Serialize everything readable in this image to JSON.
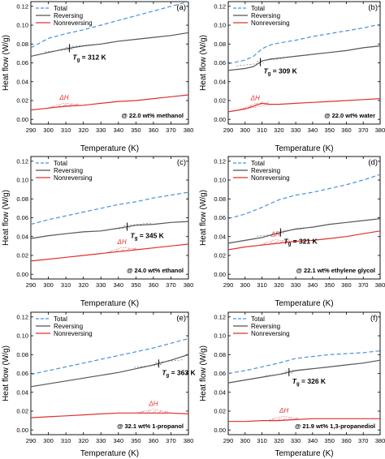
{
  "colors": {
    "total": "#4a90d9",
    "reversing": "#555555",
    "nonreversing": "#e03030",
    "guide": "#666666"
  },
  "axis_labels": {
    "x": "Temperature (K)",
    "y": "Heat flow (W/g)"
  },
  "chart_data": [
    {
      "type": "line",
      "panel": "(a)",
      "condition": "@ 22.0 wt% methanol",
      "tg_label": "T",
      "tg_sub": "g",
      "tg_value": " = 312 K",
      "tg_x": 312,
      "dh_label": "ΔH",
      "xlabel": "Temperature (K)",
      "ylabel": "Heat flow (W/g)",
      "xlim": [
        290,
        380
      ],
      "ylim": [
        -0.005,
        0.125
      ],
      "xticks": [
        290,
        300,
        310,
        320,
        330,
        340,
        350,
        360,
        370,
        380
      ],
      "yticks": [
        0.0,
        0.02,
        0.04,
        0.06,
        0.08,
        0.1,
        0.12
      ],
      "legend": [
        "Total",
        "Reversing",
        "Nonreversing"
      ],
      "series": [
        {
          "name": "Total",
          "x": [
            290,
            300,
            310,
            320,
            330,
            340,
            350,
            360,
            370,
            380
          ],
          "values": [
            0.076,
            0.086,
            0.091,
            0.095,
            0.1,
            0.105,
            0.11,
            0.115,
            0.12,
            0.125
          ]
        },
        {
          "name": "Reversing",
          "x": [
            290,
            300,
            310,
            320,
            330,
            340,
            350,
            360,
            370,
            380
          ],
          "values": [
            0.067,
            0.071,
            0.075,
            0.078,
            0.08,
            0.083,
            0.085,
            0.087,
            0.089,
            0.092
          ]
        },
        {
          "name": "Nonreversing",
          "x": [
            290,
            300,
            310,
            320,
            330,
            340,
            350,
            360,
            370,
            380
          ],
          "values": [
            0.01,
            0.012,
            0.014,
            0.015,
            0.017,
            0.019,
            0.02,
            0.022,
            0.024,
            0.026
          ]
        }
      ]
    },
    {
      "type": "line",
      "panel": "(b)",
      "condition": "@ 22.0 wt% water",
      "tg_label": "T",
      "tg_sub": "g",
      "tg_value": " = 309 K",
      "tg_x": 309,
      "dh_label": "ΔH",
      "xlabel": "Temperature (K)",
      "ylabel": "Heat flow (W/g)",
      "xlim": [
        290,
        380
      ],
      "ylim": [
        -0.005,
        0.125
      ],
      "xticks": [
        290,
        300,
        310,
        320,
        330,
        340,
        350,
        360,
        370,
        380
      ],
      "yticks": [
        0.0,
        0.02,
        0.04,
        0.06,
        0.08,
        0.1,
        0.12
      ],
      "legend": [
        "Total",
        "Reversing",
        "Nonreversing"
      ],
      "series": [
        {
          "name": "Total",
          "x": [
            290,
            300,
            305,
            310,
            315,
            320,
            330,
            340,
            350,
            360,
            370,
            380
          ],
          "values": [
            0.059,
            0.063,
            0.067,
            0.075,
            0.079,
            0.081,
            0.084,
            0.088,
            0.091,
            0.094,
            0.097,
            0.101
          ]
        },
        {
          "name": "Reversing",
          "x": [
            290,
            300,
            305,
            310,
            315,
            320,
            330,
            340,
            350,
            360,
            370,
            380
          ],
          "values": [
            0.052,
            0.054,
            0.056,
            0.062,
            0.064,
            0.065,
            0.067,
            0.069,
            0.071,
            0.073,
            0.076,
            0.078
          ]
        },
        {
          "name": "Nonreversing",
          "x": [
            290,
            300,
            305,
            310,
            315,
            320,
            330,
            340,
            350,
            360,
            370,
            380
          ],
          "values": [
            0.008,
            0.011,
            0.014,
            0.017,
            0.016,
            0.016,
            0.017,
            0.018,
            0.019,
            0.02,
            0.021,
            0.022
          ]
        }
      ]
    },
    {
      "type": "line",
      "panel": "(c)",
      "condition": "@ 24.0 wt% ethanol",
      "tg_label": "T",
      "tg_sub": "g",
      "tg_value": " = 345 K",
      "tg_x": 345,
      "dh_label": "ΔH",
      "xlabel": "Temperature (K)",
      "ylabel": "Heat flow (W/g)",
      "xlim": [
        290,
        380
      ],
      "ylim": [
        -0.005,
        0.125
      ],
      "xticks": [
        290,
        300,
        310,
        320,
        330,
        340,
        350,
        360,
        370,
        380
      ],
      "yticks": [
        0.0,
        0.02,
        0.04,
        0.06,
        0.08,
        0.1,
        0.12
      ],
      "legend": [
        "Total",
        "Reversing",
        "Nonreversing"
      ],
      "series": [
        {
          "name": "Total",
          "x": [
            290,
            300,
            310,
            320,
            330,
            340,
            350,
            360,
            370,
            380
          ],
          "values": [
            0.053,
            0.058,
            0.062,
            0.066,
            0.07,
            0.074,
            0.077,
            0.081,
            0.084,
            0.087
          ]
        },
        {
          "name": "Reversing",
          "x": [
            290,
            300,
            310,
            320,
            330,
            340,
            350,
            360,
            370,
            380
          ],
          "values": [
            0.038,
            0.041,
            0.043,
            0.045,
            0.046,
            0.049,
            0.052,
            0.053,
            0.055,
            0.056
          ]
        },
        {
          "name": "Nonreversing",
          "x": [
            290,
            300,
            310,
            320,
            330,
            340,
            350,
            360,
            370,
            380
          ],
          "values": [
            0.014,
            0.016,
            0.018,
            0.02,
            0.022,
            0.024,
            0.026,
            0.028,
            0.03,
            0.032
          ]
        }
      ]
    },
    {
      "type": "line",
      "panel": "(d)",
      "condition": "@ 22.1 wt% ethylene glycol",
      "tg_label": "T",
      "tg_sub": "g",
      "tg_value": " = 321 K",
      "tg_x": 321,
      "dh_label": "ΔH",
      "xlabel": "Temperature (K)",
      "ylabel": "Heat flow (W/g)",
      "xlim": [
        290,
        380
      ],
      "ylim": [
        -0.005,
        0.125
      ],
      "xticks": [
        290,
        300,
        310,
        320,
        330,
        340,
        350,
        360,
        370,
        380
      ],
      "yticks": [
        0.0,
        0.02,
        0.04,
        0.06,
        0.08,
        0.1,
        0.12
      ],
      "legend": [
        "Total",
        "Reversing",
        "Nonreversing"
      ],
      "series": [
        {
          "name": "Total",
          "x": [
            290,
            300,
            310,
            320,
            330,
            340,
            350,
            360,
            370,
            380
          ],
          "values": [
            0.059,
            0.064,
            0.071,
            0.079,
            0.084,
            0.087,
            0.091,
            0.095,
            0.1,
            0.106
          ]
        },
        {
          "name": "Reversing",
          "x": [
            290,
            300,
            310,
            320,
            330,
            340,
            350,
            360,
            370,
            380
          ],
          "values": [
            0.033,
            0.036,
            0.039,
            0.044,
            0.048,
            0.05,
            0.053,
            0.055,
            0.057,
            0.059
          ]
        },
        {
          "name": "Nonreversing",
          "x": [
            290,
            300,
            310,
            320,
            330,
            340,
            350,
            360,
            370,
            380
          ],
          "values": [
            0.026,
            0.029,
            0.031,
            0.033,
            0.035,
            0.036,
            0.038,
            0.04,
            0.043,
            0.046
          ]
        }
      ]
    },
    {
      "type": "line",
      "panel": "(e)",
      "condition": "@ 32.1 wt% 1-propanol",
      "tg_label": "T",
      "tg_sub": "g",
      "tg_value": " = 363 K",
      "tg_x": 363,
      "dh_label": "ΔH",
      "xlabel": "Temperature (K)",
      "ylabel": "Heat flow (W/g)",
      "xlim": [
        290,
        380
      ],
      "ylim": [
        -0.005,
        0.125
      ],
      "xticks": [
        290,
        300,
        310,
        320,
        330,
        340,
        350,
        360,
        370,
        380
      ],
      "yticks": [
        0.0,
        0.02,
        0.04,
        0.06,
        0.08,
        0.1,
        0.12
      ],
      "legend": [
        "Total",
        "Reversing",
        "Nonreversing"
      ],
      "series": [
        {
          "name": "Total",
          "x": [
            290,
            300,
            310,
            320,
            330,
            340,
            350,
            360,
            370,
            380
          ],
          "values": [
            0.059,
            0.063,
            0.067,
            0.071,
            0.075,
            0.079,
            0.083,
            0.087,
            0.092,
            0.097
          ]
        },
        {
          "name": "Reversing",
          "x": [
            290,
            300,
            310,
            320,
            330,
            340,
            350,
            360,
            370,
            380
          ],
          "values": [
            0.046,
            0.049,
            0.052,
            0.055,
            0.058,
            0.061,
            0.065,
            0.069,
            0.074,
            0.08
          ]
        },
        {
          "name": "Nonreversing",
          "x": [
            290,
            300,
            310,
            320,
            330,
            340,
            350,
            360,
            370,
            380
          ],
          "values": [
            0.013,
            0.014,
            0.015,
            0.016,
            0.017,
            0.018,
            0.018,
            0.018,
            0.018,
            0.017
          ]
        }
      ]
    },
    {
      "type": "line",
      "panel": "(f)",
      "condition": "@ 21.9 wt% 1,3-propanediol",
      "tg_label": "T",
      "tg_sub": "g",
      "tg_value": " = 326 K",
      "tg_x": 326,
      "dh_label": "ΔH",
      "xlabel": "Temperature (K)",
      "ylabel": "Heat flow (W/g)",
      "xlim": [
        290,
        380
      ],
      "ylim": [
        -0.005,
        0.125
      ],
      "xticks": [
        290,
        300,
        310,
        320,
        330,
        340,
        350,
        360,
        370,
        380
      ],
      "yticks": [
        0.0,
        0.02,
        0.04,
        0.06,
        0.08,
        0.1,
        0.12
      ],
      "legend": [
        "Total",
        "Reversing",
        "Nonreversing"
      ],
      "series": [
        {
          "name": "Total",
          "x": [
            290,
            300,
            310,
            320,
            330,
            340,
            350,
            360,
            370,
            380
          ],
          "values": [
            0.06,
            0.063,
            0.067,
            0.071,
            0.076,
            0.078,
            0.08,
            0.081,
            0.082,
            0.084
          ]
        },
        {
          "name": "Reversing",
          "x": [
            290,
            300,
            310,
            320,
            330,
            340,
            350,
            360,
            370,
            380
          ],
          "values": [
            0.05,
            0.053,
            0.056,
            0.059,
            0.063,
            0.065,
            0.067,
            0.069,
            0.071,
            0.074
          ]
        },
        {
          "name": "Nonreversing",
          "x": [
            290,
            300,
            310,
            320,
            330,
            340,
            350,
            360,
            370,
            380
          ],
          "values": [
            0.009,
            0.009,
            0.01,
            0.01,
            0.011,
            0.012,
            0.012,
            0.012,
            0.012,
            0.012
          ]
        }
      ]
    }
  ]
}
